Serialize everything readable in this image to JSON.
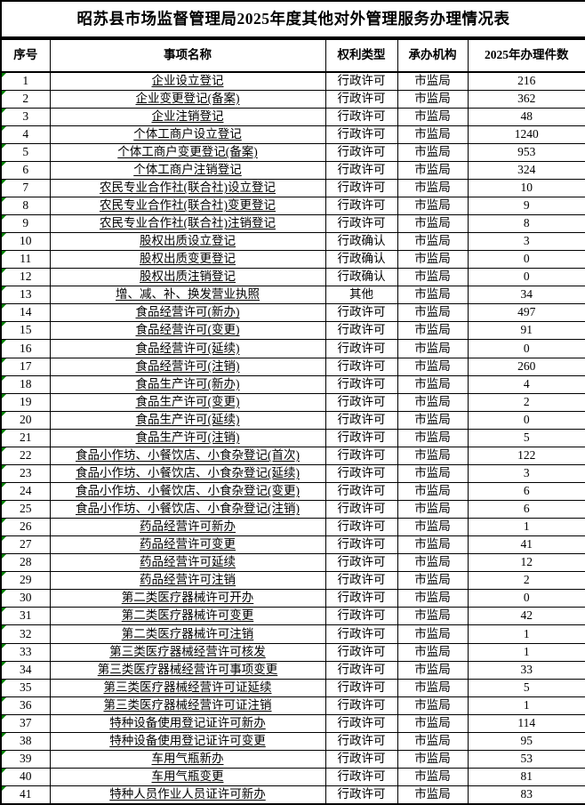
{
  "title": "昭苏县市场监督管理局2025年度其他对外管理服务办理情况表",
  "colors": {
    "border": "#000000",
    "error_marker_green": "#008000",
    "background": "#ffffff",
    "text": "#000000"
  },
  "table": {
    "headers": {
      "no": "序号",
      "name": "事项名称",
      "type": "权利类型",
      "agency": "承办机构",
      "count": "2025年办理件数"
    },
    "rows": [
      {
        "no": "1",
        "name": "企业设立登记",
        "type": "行政许可",
        "agency": "市监局",
        "count": "216"
      },
      {
        "no": "2",
        "name": "企业变更登记(备案)",
        "type": "行政许可",
        "agency": "市监局",
        "count": "362"
      },
      {
        "no": "3",
        "name": "企业注销登记",
        "type": "行政许可",
        "agency": "市监局",
        "count": "48"
      },
      {
        "no": "4",
        "name": "个体工商户设立登记",
        "type": "行政许可",
        "agency": "市监局",
        "count": "1240"
      },
      {
        "no": "5",
        "name": "个体工商户变更登记(备案)",
        "type": "行政许可",
        "agency": "市监局",
        "count": "953"
      },
      {
        "no": "6",
        "name": "个体工商户注销登记",
        "type": "行政许可",
        "agency": "市监局",
        "count": "324"
      },
      {
        "no": "7",
        "name": "农民专业合作社(联合社)设立登记",
        "type": "行政许可",
        "agency": "市监局",
        "count": "10"
      },
      {
        "no": "8",
        "name": "农民专业合作社(联合社)变更登记",
        "type": "行政许可",
        "agency": "市监局",
        "count": "9"
      },
      {
        "no": "9",
        "name": "农民专业合作社(联合社)注销登记",
        "type": "行政许可",
        "agency": "市监局",
        "count": "8"
      },
      {
        "no": "10",
        "name": "股权出质设立登记",
        "type": "行政确认",
        "agency": "市监局",
        "count": "3"
      },
      {
        "no": "11",
        "name": "股权出质变更登记",
        "type": "行政确认",
        "agency": "市监局",
        "count": "0"
      },
      {
        "no": "12",
        "name": "股权出质注销登记",
        "type": "行政确认",
        "agency": "市监局",
        "count": "0"
      },
      {
        "no": "13",
        "name": "增、减、补、换发营业执照",
        "type": "其他",
        "agency": "市监局",
        "count": "34"
      },
      {
        "no": "14",
        "name": "食品经营许可(新办)",
        "type": "行政许可",
        "agency": "市监局",
        "count": "497"
      },
      {
        "no": "15",
        "name": "食品经营许可(变更)",
        "type": "行政许可",
        "agency": "市监局",
        "count": "91"
      },
      {
        "no": "16",
        "name": "食品经营许可(延续)",
        "type": "行政许可",
        "agency": "市监局",
        "count": "0"
      },
      {
        "no": "17",
        "name": "食品经营许可(注销)",
        "type": "行政许可",
        "agency": "市监局",
        "count": "260"
      },
      {
        "no": "18",
        "name": "食品生产许可(新办)",
        "type": "行政许可",
        "agency": "市监局",
        "count": "4"
      },
      {
        "no": "19",
        "name": "食品生产许可(变更)",
        "type": "行政许可",
        "agency": "市监局",
        "count": "2"
      },
      {
        "no": "20",
        "name": "食品生产许可(延续)",
        "type": "行政许可",
        "agency": "市监局",
        "count": "0"
      },
      {
        "no": "21",
        "name": "食品生产许可(注销)",
        "type": "行政许可",
        "agency": "市监局",
        "count": "5"
      },
      {
        "no": "22",
        "name": "食品小作坊、小餐饮店、小食杂登记(首次)",
        "type": "行政许可",
        "agency": "市监局",
        "count": "122"
      },
      {
        "no": "23",
        "name": "食品小作坊、小餐饮店、小食杂登记(延续)",
        "type": "行政许可",
        "agency": "市监局",
        "count": "3"
      },
      {
        "no": "24",
        "name": "食品小作坊、小餐饮店、小食杂登记(变更)",
        "type": "行政许可",
        "agency": "市监局",
        "count": "6"
      },
      {
        "no": "25",
        "name": "食品小作坊、小餐饮店、小食杂登记(注销)",
        "type": "行政许可",
        "agency": "市监局",
        "count": "6"
      },
      {
        "no": "26",
        "name": "药品经营许可新办",
        "type": "行政许可",
        "agency": "市监局",
        "count": "1"
      },
      {
        "no": "27",
        "name": "药品经营许可变更",
        "type": "行政许可",
        "agency": "市监局",
        "count": "41"
      },
      {
        "no": "28",
        "name": "药品经营许可延续",
        "type": "行政许可",
        "agency": "市监局",
        "count": "12"
      },
      {
        "no": "29",
        "name": "药品经营许可注销",
        "type": "行政许可",
        "agency": "市监局",
        "count": "2"
      },
      {
        "no": "30",
        "name": "第二类医疗器械许可开办",
        "type": "行政许可",
        "agency": "市监局",
        "count": "0"
      },
      {
        "no": "31",
        "name": "第二类医疗器械许可变更",
        "type": "行政许可",
        "agency": "市监局",
        "count": "42"
      },
      {
        "no": "32",
        "name": "第二类医疗器械许可注销",
        "type": "行政许可",
        "agency": "市监局",
        "count": "1"
      },
      {
        "no": "33",
        "name": "第三类医疗器械经营许可核发",
        "type": "行政许可",
        "agency": "市监局",
        "count": "1"
      },
      {
        "no": "34",
        "name": "第三类医疗器械经营许可事项变更",
        "type": "行政许可",
        "agency": "市监局",
        "count": "33"
      },
      {
        "no": "35",
        "name": "第三类医疗器械经营许可证延续",
        "type": "行政许可",
        "agency": "市监局",
        "count": "5"
      },
      {
        "no": "36",
        "name": "第三类医疗器械经营许可证注销",
        "type": "行政许可",
        "agency": "市监局",
        "count": "1"
      },
      {
        "no": "37",
        "name": "特种设备使用登记证许可新办",
        "type": "行政许可",
        "agency": "市监局",
        "count": "114"
      },
      {
        "no": "38",
        "name": "特种设备使用登记证许可变更",
        "type": "行政许可",
        "agency": "市监局",
        "count": "95"
      },
      {
        "no": "39",
        "name": "车用气瓶新办",
        "type": "行政许可",
        "agency": "市监局",
        "count": "53"
      },
      {
        "no": "40",
        "name": "车用气瓶变更",
        "type": "行政许可",
        "agency": "市监局",
        "count": "81"
      },
      {
        "no": "41",
        "name": "特种人员作业人员证许可新办",
        "type": "行政许可",
        "agency": "市监局",
        "count": "83"
      }
    ]
  }
}
